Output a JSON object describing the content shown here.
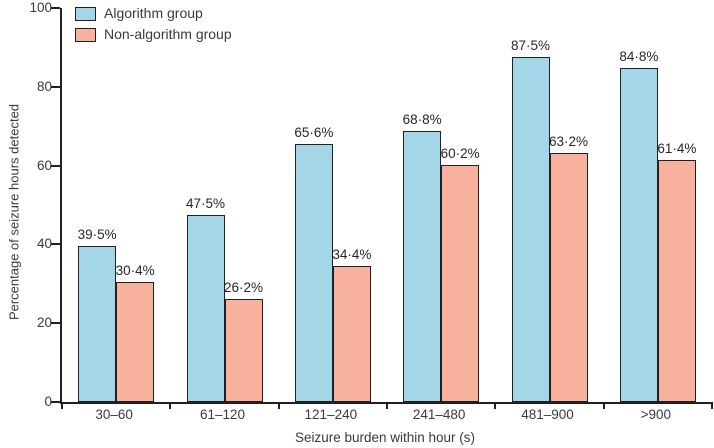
{
  "colors": {
    "algorithm_fill": "#a3d6e6",
    "non_algorithm_fill": "#f8b19c",
    "bar_border": "#231f20",
    "axis": "#231f20",
    "text": "#3a3a3a"
  },
  "chart_data": {
    "type": "bar",
    "title": "",
    "xlabel": "Seizure burden within hour (s)",
    "ylabel": "Percentage of seizure hours detected",
    "categories": [
      "30–60",
      "61–120",
      "121–240",
      "241–480",
      "481–900",
      ">900"
    ],
    "series": [
      {
        "name": "Algorithm group",
        "color": "#a3d6e6",
        "values": [
          39.5,
          47.5,
          65.6,
          68.8,
          87.5,
          84.8
        ],
        "value_labels": [
          "39·5%",
          "47·5%",
          "65·6%",
          "68·8%",
          "87·5%",
          "84·8%"
        ]
      },
      {
        "name": "Non-algorithm group",
        "color": "#f8b19c",
        "values": [
          30.4,
          26.2,
          34.4,
          60.2,
          63.2,
          61.4
        ],
        "value_labels": [
          "30·4%",
          "26·2%",
          "34·4%",
          "60·2%",
          "63·2%",
          "61·4%"
        ]
      }
    ],
    "ylim": [
      0,
      100
    ],
    "yticks": [
      0,
      20,
      40,
      60,
      80,
      100
    ],
    "grid": false,
    "legend_position": "top-left"
  }
}
